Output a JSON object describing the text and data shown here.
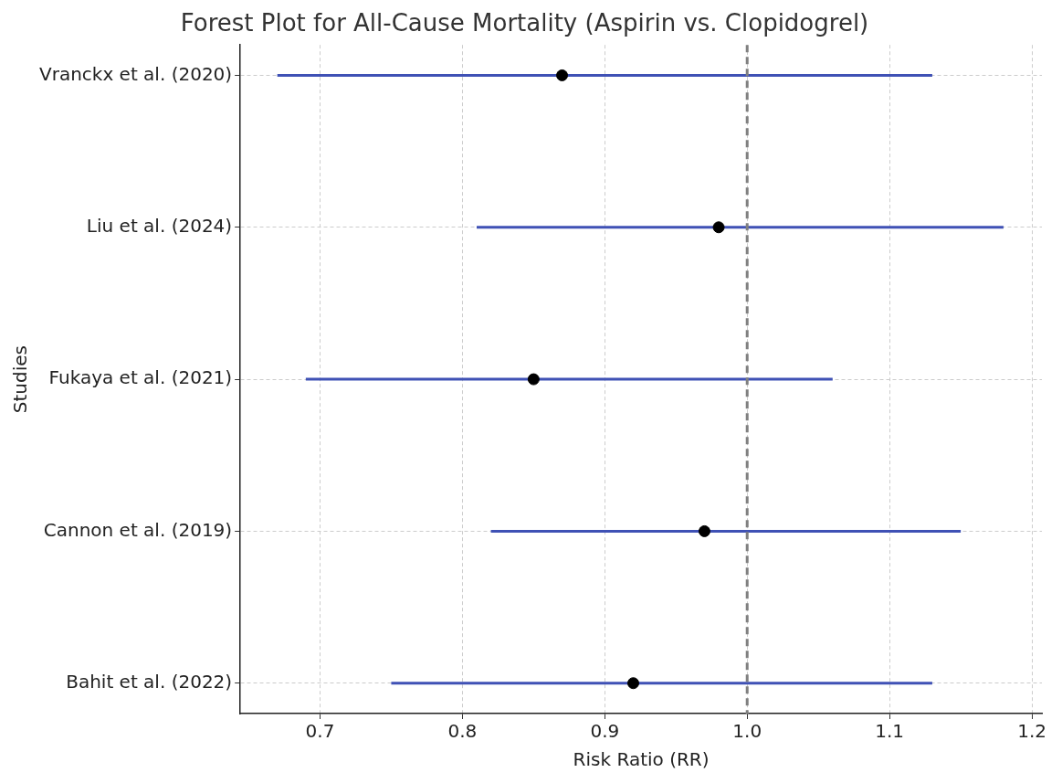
{
  "chart_data": {
    "type": "scatter",
    "orientation": "horizontal",
    "title": "Forest Plot for All-Cause Mortality (Aspirin vs. Clopidogrel)",
    "xlabel": "Risk Ratio (RR)",
    "ylabel": "Studies",
    "categories": [
      "Vranckx et al. (2020)",
      "Liu et al. (2024)",
      "Fukaya et al. (2021)",
      "Cannon et al. (2019)",
      "Bahit et al. (2022)"
    ],
    "values": [
      0.87,
      0.98,
      0.85,
      0.97,
      0.92
    ],
    "errors": [
      [
        0.67,
        1.13
      ],
      [
        0.81,
        1.18
      ],
      [
        0.69,
        1.06
      ],
      [
        0.82,
        1.15
      ],
      [
        0.75,
        1.13
      ]
    ],
    "color": "#000000",
    "marker": "circle",
    "xlim": [
      0.644,
      1.207
    ],
    "xticks": [
      0.7,
      0.8,
      0.9,
      {
        "value": 1,
        "label": "1.0"
      },
      1.1,
      1.2
    ],
    "ref_lines": [
      {
        "axis": "x",
        "value": 1,
        "color": "#808080",
        "line_style": "dashed"
      }
    ],
    "grid": true
  }
}
